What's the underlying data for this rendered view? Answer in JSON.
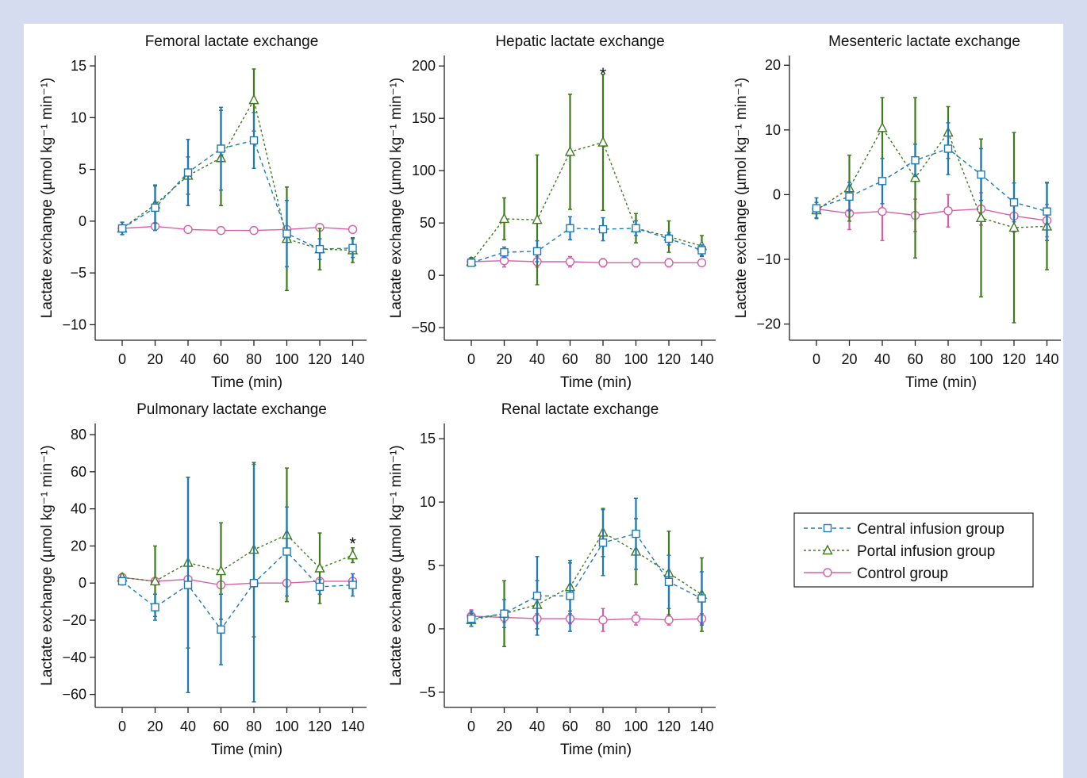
{
  "legend": {
    "entries": [
      {
        "label": "Central infusion group",
        "color": "#1d7ab8",
        "marker": "square",
        "dash": "dash"
      },
      {
        "label": "Portal infusion group",
        "color": "#3f7a1e",
        "marker": "triangle",
        "dash": "dot"
      },
      {
        "label": "Control group",
        "color": "#d660a8",
        "marker": "circle",
        "dash": "solid"
      }
    ]
  },
  "chart_data": [
    {
      "type": "line",
      "title": "Femoral lactate exchange",
      "xlabel": "Time (min)",
      "ylabel": "Lactate exchange (µmol kg⁻¹ min⁻¹)",
      "x": [
        0,
        20,
        40,
        60,
        80,
        100,
        120,
        140
      ],
      "xticks": [
        "0",
        "20",
        "40",
        "60",
        "80",
        "100",
        "120",
        "140"
      ],
      "ylim": [
        -11.5,
        16
      ],
      "yticks": [
        -10,
        -5,
        0,
        5,
        10,
        15
      ],
      "ytick_labels": [
        "−10",
        "−5",
        "0",
        "5",
        "10",
        "15"
      ],
      "series": [
        {
          "name": "Central infusion group",
          "values": [
            -0.7,
            1.3,
            4.7,
            7.0,
            7.8,
            -1.2,
            -2.7,
            -2.6
          ],
          "err": [
            0.6,
            2.2,
            3.2,
            4.0,
            2.7,
            3.2,
            1.0,
            0.9
          ]
        },
        {
          "name": "Portal infusion group",
          "values": [
            -0.7,
            1.6,
            4.4,
            6.1,
            11.7,
            -1.7,
            -2.7,
            -2.8
          ],
          "err": [
            0.6,
            1.8,
            1.8,
            4.6,
            3.0,
            5.0,
            2.0,
            1.2
          ]
        },
        {
          "name": "Control group",
          "values": [
            -0.7,
            -0.5,
            -0.8,
            -0.9,
            -0.9,
            -0.8,
            -0.6,
            -0.8
          ],
          "err": [
            0.2,
            0.2,
            0.2,
            0.2,
            0.2,
            0.3,
            0.2,
            0.2
          ]
        }
      ]
    },
    {
      "type": "line",
      "title": "Hepatic lactate exchange",
      "xlabel": "Time (min)",
      "ylabel": "Lactate exchange (µmol kg⁻¹ min⁻¹)",
      "x": [
        0,
        20,
        40,
        60,
        80,
        100,
        120,
        140
      ],
      "xticks": [
        "0",
        "20",
        "40",
        "60",
        "80",
        "100",
        "120",
        "140"
      ],
      "ylim": [
        -62,
        210
      ],
      "yticks": [
        -50,
        0,
        50,
        100,
        150,
        200
      ],
      "ytick_labels": [
        "−50",
        "0",
        "50",
        "100",
        "150",
        "200"
      ],
      "annotations": [
        {
          "x": 80,
          "y": 197,
          "text": "*"
        }
      ],
      "series": [
        {
          "name": "Central infusion group",
          "values": [
            12,
            22,
            23,
            45,
            44,
            45,
            35,
            24
          ],
          "err": [
            3,
            5,
            10,
            11,
            11,
            7,
            6,
            5
          ]
        },
        {
          "name": "Portal infusion group",
          "values": [
            13,
            54,
            53,
            118,
            127,
            45,
            37,
            28
          ],
          "err": [
            4,
            20,
            62,
            55,
            65,
            14,
            15,
            10
          ]
        },
        {
          "name": "Control group",
          "values": [
            13,
            14,
            13,
            13,
            12,
            12,
            12,
            12
          ],
          "err": [
            3,
            6,
            5,
            5,
            4,
            4,
            4,
            3
          ]
        }
      ]
    },
    {
      "type": "line",
      "title": "Mesenteric lactate exchange",
      "xlabel": "Time (min)",
      "ylabel": "Lactate exchange (µmol kg⁻¹ min⁻¹)",
      "x": [
        0,
        20,
        40,
        60,
        80,
        100,
        120,
        140
      ],
      "xticks": [
        "0",
        "20",
        "40",
        "60",
        "80",
        "100",
        "120",
        "140"
      ],
      "ylim": [
        -22.5,
        21.5
      ],
      "yticks": [
        -20,
        -10,
        0,
        10,
        20
      ],
      "ytick_labels": [
        "−20",
        "−10",
        "0",
        "10",
        "20"
      ],
      "series": [
        {
          "name": "Central infusion group",
          "values": [
            -2.1,
            -0.3,
            2.1,
            5.3,
            7.1,
            3.1,
            -1.2,
            -2.6
          ],
          "err": [
            1.6,
            2.2,
            3.5,
            2.5,
            4.0,
            4.0,
            3.0,
            4.5
          ]
        },
        {
          "name": "Portal infusion group",
          "values": [
            -2.4,
            1.0,
            10.3,
            2.6,
            9.6,
            -3.6,
            -5.1,
            -4.9
          ],
          "err": [
            1.2,
            5.1,
            4.7,
            12.4,
            4.0,
            12.2,
            14.7,
            6.7
          ]
        },
        {
          "name": "Control group",
          "values": [
            -2.2,
            -2.9,
            -2.6,
            -3.2,
            -2.5,
            -2.2,
            -3.3,
            -4.0
          ],
          "err": [
            0.6,
            2.5,
            4.5,
            2.5,
            2.5,
            2.5,
            2.5,
            2.5
          ]
        }
      ]
    },
    {
      "type": "line",
      "title": "Pulmonary lactate exchange",
      "xlabel": "Time (min)",
      "ylabel": "Lactate exchange (µmol kg⁻¹ min⁻¹)",
      "x": [
        0,
        20,
        40,
        60,
        80,
        100,
        120,
        140
      ],
      "xticks": [
        "0",
        "20",
        "40",
        "60",
        "80",
        "100",
        "120",
        "140"
      ],
      "ylim": [
        -67,
        86
      ],
      "yticks": [
        -60,
        -40,
        -20,
        0,
        20,
        40,
        60,
        80
      ],
      "ytick_labels": [
        "−60",
        "−40",
        "−20",
        "0",
        "20",
        "40",
        "60",
        "80"
      ],
      "annotations": [
        {
          "x": 140,
          "y": 24,
          "text": "*"
        }
      ],
      "series": [
        {
          "name": "Central infusion group",
          "values": [
            1,
            -13,
            -1,
            -25,
            0,
            17,
            -2,
            -1
          ],
          "err": [
            2,
            7,
            58,
            19,
            64,
            24,
            4,
            6
          ]
        },
        {
          "name": "Portal infusion group",
          "values": [
            3,
            1,
            11,
            6.5,
            18,
            26,
            8,
            15
          ],
          "err": [
            2,
            19,
            46,
            26,
            47,
            36,
            19,
            4
          ]
        },
        {
          "name": "Control group",
          "values": [
            3,
            1,
            2,
            -1,
            0,
            0,
            1,
            1
          ],
          "err": [
            1,
            1,
            1,
            1,
            1,
            1,
            1,
            1
          ]
        }
      ]
    },
    {
      "type": "line",
      "title": "Renal lactate exchange",
      "xlabel": "Time (min)",
      "ylabel": "Lactate exchange (µmol kg⁻¹ min⁻¹)",
      "x": [
        0,
        20,
        40,
        60,
        80,
        100,
        120,
        140
      ],
      "xticks": [
        "0",
        "20",
        "40",
        "60",
        "80",
        "100",
        "120",
        "140"
      ],
      "ylim": [
        -6.2,
        16.2
      ],
      "yticks": [
        -5,
        0,
        5,
        10,
        15
      ],
      "ytick_labels": [
        "−5",
        "0",
        "5",
        "10",
        "15"
      ],
      "series": [
        {
          "name": "Central infusion group",
          "values": [
            0.8,
            1.2,
            2.6,
            2.6,
            6.8,
            7.5,
            3.7,
            2.4
          ],
          "err": [
            0.6,
            1.1,
            3.1,
            2.8,
            2.6,
            2.8,
            2.1,
            2.1
          ]
        },
        {
          "name": "Portal infusion group",
          "values": [
            0.7,
            1.2,
            1.9,
            3.3,
            7.6,
            6.1,
            4.4,
            2.7
          ],
          "err": [
            0.5,
            2.6,
            1.9,
            1.9,
            1.9,
            2.6,
            3.3,
            2.9
          ]
        },
        {
          "name": "Control group",
          "values": [
            1.0,
            0.9,
            0.8,
            0.8,
            0.7,
            0.8,
            0.7,
            0.8
          ],
          "err": [
            0.5,
            0.4,
            0.4,
            0.4,
            0.9,
            0.5,
            0.4,
            0.4
          ]
        }
      ]
    }
  ]
}
